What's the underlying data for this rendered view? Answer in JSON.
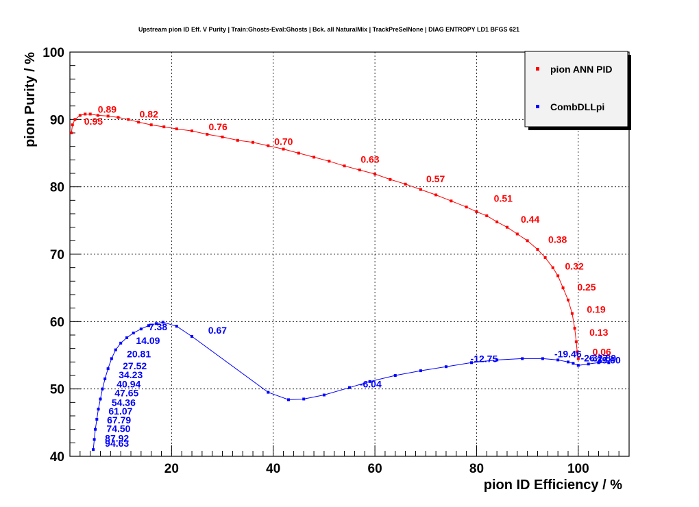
{
  "chart_data": {
    "type": "line",
    "title": "Upstream pion ID Eff. V Purity | Train:Ghosts-Eval:Ghosts | Bck. all NaturalMix | TrackPreSelNone | DIAG ENTROPY LD1 BFGS 621",
    "xlabel": "pion ID Efficiency / %",
    "ylabel": "pion Purity / %",
    "xlim": [
      0,
      110
    ],
    "ylim": [
      40,
      100
    ],
    "x_ticks": [
      "20",
      "40",
      "60",
      "80",
      "100"
    ],
    "y_ticks": [
      "40",
      "50",
      "60",
      "70",
      "80",
      "90",
      "100"
    ],
    "grid": true,
    "legend_position": "top-right",
    "series": [
      {
        "name": "pion ANN PID",
        "color": "#ff0000",
        "points": [
          [
            0.3,
            88.0
          ],
          [
            0.5,
            89.2
          ],
          [
            1.0,
            90.0
          ],
          [
            2.0,
            90.6
          ],
          [
            3.0,
            90.8
          ],
          [
            4.0,
            90.8
          ],
          [
            5.5,
            90.6
          ],
          [
            7.5,
            90.5
          ],
          [
            9.5,
            90.3
          ],
          [
            11.5,
            90.0
          ],
          [
            13.5,
            89.6
          ],
          [
            16.0,
            89.2
          ],
          [
            18.5,
            88.9
          ],
          [
            21.0,
            88.6
          ],
          [
            24.0,
            88.3
          ],
          [
            27.0,
            87.8
          ],
          [
            30.0,
            87.4
          ],
          [
            33.0,
            86.9
          ],
          [
            36.0,
            86.6
          ],
          [
            39.0,
            86.1
          ],
          [
            42.0,
            85.6
          ],
          [
            45.0,
            85.0
          ],
          [
            48.0,
            84.4
          ],
          [
            51.0,
            83.8
          ],
          [
            54.0,
            83.1
          ],
          [
            57.0,
            82.5
          ],
          [
            60.0,
            81.9
          ],
          [
            63.0,
            81.1
          ],
          [
            66.0,
            80.4
          ],
          [
            69.0,
            79.6
          ],
          [
            72.0,
            78.8
          ],
          [
            75.0,
            77.9
          ],
          [
            78.0,
            77.0
          ],
          [
            80.0,
            76.3
          ],
          [
            82.0,
            75.7
          ],
          [
            84.0,
            74.8
          ],
          [
            86.0,
            74.0
          ],
          [
            88.0,
            73.0
          ],
          [
            90.0,
            72.0
          ],
          [
            92.0,
            70.7
          ],
          [
            93.5,
            69.5
          ],
          [
            95.0,
            68.0
          ],
          [
            96.0,
            66.8
          ],
          [
            97.0,
            65.0
          ],
          [
            98.0,
            63.2
          ],
          [
            98.8,
            61.2
          ],
          [
            99.3,
            59.0
          ],
          [
            99.6,
            57.0
          ],
          [
            99.8,
            55.5
          ],
          [
            100.0,
            54.5
          ]
        ],
        "labels": [
          {
            "text": "0.95",
            "x": 2.8,
            "y": 89.2
          },
          {
            "text": "0.89",
            "x": 5.5,
            "y": 91.0
          },
          {
            "text": "0.82",
            "x": 13.7,
            "y": 90.3
          },
          {
            "text": "0.76",
            "x": 27.3,
            "y": 88.4
          },
          {
            "text": "0.70",
            "x": 40.2,
            "y": 86.2
          },
          {
            "text": "0.63",
            "x": 57.2,
            "y": 83.6
          },
          {
            "text": "0.57",
            "x": 70.1,
            "y": 80.7
          },
          {
            "text": "0.51",
            "x": 83.4,
            "y": 77.8
          },
          {
            "text": "0.44",
            "x": 88.7,
            "y": 74.7
          },
          {
            "text": "0.38",
            "x": 94.1,
            "y": 71.7
          },
          {
            "text": "0.32",
            "x": 97.4,
            "y": 67.7
          },
          {
            "text": "0.25",
            "x": 99.8,
            "y": 64.6
          },
          {
            "text": "0.19",
            "x": 101.7,
            "y": 61.3
          },
          {
            "text": "0.13",
            "x": 102.2,
            "y": 57.9
          },
          {
            "text": "0.06",
            "x": 102.8,
            "y": 55.0
          }
        ]
      },
      {
        "name": "CombDLLpi",
        "color": "#0000ff",
        "points": [
          [
            4.6,
            41.0
          ],
          [
            4.8,
            42.5
          ],
          [
            5.0,
            44.0
          ],
          [
            5.3,
            45.5
          ],
          [
            5.6,
            47.0
          ],
          [
            6.0,
            48.5
          ],
          [
            6.4,
            50.0
          ],
          [
            6.9,
            51.5
          ],
          [
            7.5,
            53.0
          ],
          [
            8.2,
            54.5
          ],
          [
            9.0,
            55.8
          ],
          [
            10.0,
            56.8
          ],
          [
            11.2,
            57.6
          ],
          [
            12.5,
            58.3
          ],
          [
            14.0,
            58.9
          ],
          [
            15.5,
            59.4
          ],
          [
            17.0,
            59.7
          ],
          [
            18.3,
            59.9
          ],
          [
            21.0,
            59.3
          ],
          [
            24.0,
            57.8
          ],
          [
            39.0,
            49.5
          ],
          [
            43.0,
            48.4
          ],
          [
            46.0,
            48.5
          ],
          [
            50.0,
            49.1
          ],
          [
            55.0,
            50.2
          ],
          [
            59.0,
            51.1
          ],
          [
            64.0,
            52.0
          ],
          [
            69.0,
            52.7
          ],
          [
            74.0,
            53.3
          ],
          [
            79.0,
            53.9
          ],
          [
            84.0,
            54.3
          ],
          [
            89.0,
            54.5
          ],
          [
            93.0,
            54.5
          ],
          [
            96.0,
            54.3
          ],
          [
            98.0,
            54.0
          ],
          [
            99.0,
            53.8
          ],
          [
            100.0,
            53.5
          ],
          [
            102.0,
            53.7
          ],
          [
            104.0,
            53.9
          ],
          [
            106.0,
            53.9
          ]
        ],
        "labels": [
          {
            "text": "94.63",
            "x": 6.9,
            "y": 41.4
          },
          {
            "text": "87.92",
            "x": 6.9,
            "y": 42.2
          },
          {
            "text": "74.50",
            "x": 7.2,
            "y": 43.6
          },
          {
            "text": "67.79",
            "x": 7.3,
            "y": 44.9
          },
          {
            "text": "61.07",
            "x": 7.6,
            "y": 46.2
          },
          {
            "text": "54.36",
            "x": 8.2,
            "y": 47.5
          },
          {
            "text": "47.65",
            "x": 8.8,
            "y": 48.9
          },
          {
            "text": "40.94",
            "x": 9.2,
            "y": 50.2
          },
          {
            "text": "34.23",
            "x": 9.6,
            "y": 51.6
          },
          {
            "text": "27.52",
            "x": 10.4,
            "y": 52.9
          },
          {
            "text": "20.81",
            "x": 11.2,
            "y": 54.7
          },
          {
            "text": "14.09",
            "x": 13.0,
            "y": 56.7
          },
          {
            "text": "7.38",
            "x": 15.5,
            "y": 58.7
          },
          {
            "text": "0.67",
            "x": 27.2,
            "y": 58.2
          },
          {
            "text": "-6.04",
            "x": 57.0,
            "y": 50.2
          },
          {
            "text": "-12.75",
            "x": 78.8,
            "y": 54.0
          },
          {
            "text": "-19.46",
            "x": 95.3,
            "y": 54.7
          },
          {
            "text": "-26.17",
            "x": 100.5,
            "y": 54.1
          },
          {
            "text": "-32.89",
            "x": 102.1,
            "y": 54.1
          },
          {
            "text": "-39.60",
            "x": 103.0,
            "y": 53.8
          }
        ]
      }
    ]
  }
}
